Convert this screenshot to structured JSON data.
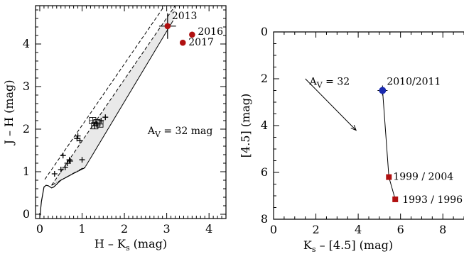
{
  "chart_data": [
    {
      "type": "scatter",
      "title": "",
      "xlabel": "H – K",
      "xlabel_sub": "s",
      "xlabel_unit": " (mag)",
      "ylabel": "J – H (mag)",
      "xlim": [
        -0.1,
        4.4
      ],
      "ylim": [
        -0.1,
        4.9
      ],
      "xticks": [
        0,
        1,
        2,
        3,
        4
      ],
      "yticks": [
        0,
        1,
        2,
        3,
        4
      ],
      "reddening_band": {
        "upper_dashed": [
          [
            0.12,
            0.82
          ],
          [
            2.95,
            4.9
          ]
        ],
        "middle_dashed": [
          [
            0.28,
            0.68
          ],
          [
            3.2,
            4.9
          ]
        ],
        "lower_solid": [
          [
            1.08,
            1.12
          ],
          [
            3.15,
            4.55
          ]
        ],
        "lower_dashdot": [
          [
            0.28,
            0.68
          ],
          [
            1.08,
            1.12
          ]
        ],
        "band_fill_color": "#e9e9e9"
      },
      "intrinsic_locus": [
        [
          0.0,
          -0.08
        ],
        [
          0.04,
          0.3
        ],
        [
          0.1,
          0.64
        ],
        [
          0.15,
          0.68
        ],
        [
          0.2,
          0.67
        ],
        [
          0.28,
          0.62
        ],
        [
          0.33,
          0.64
        ],
        [
          0.5,
          0.8
        ],
        [
          0.8,
          0.96
        ],
        [
          1.08,
          1.1
        ]
      ],
      "plus_points": [
        [
          0.35,
          0.95
        ],
        [
          0.5,
          1.05
        ],
        [
          0.6,
          1.1
        ],
        [
          0.55,
          1.38
        ],
        [
          0.65,
          1.2
        ],
        [
          0.7,
          1.28
        ],
        [
          0.72,
          1.25
        ],
        [
          0.88,
          1.78
        ],
        [
          0.9,
          1.84
        ],
        [
          0.95,
          1.73
        ],
        [
          1.0,
          1.28
        ],
        [
          1.3,
          2.08
        ],
        [
          1.35,
          2.12
        ],
        [
          1.45,
          2.2
        ],
        [
          1.55,
          2.28
        ]
      ],
      "square_points": [
        [
          1.25,
          2.2
        ],
        [
          1.3,
          2.08
        ],
        [
          1.35,
          2.15
        ],
        [
          1.42,
          2.12
        ]
      ],
      "epochs": [
        {
          "label": "2013",
          "x": 3.02,
          "y": 4.42,
          "xerr": 0.2,
          "yerr": 0.3,
          "color": "#b01010"
        },
        {
          "label": "2016",
          "x": 3.6,
          "y": 4.22,
          "color": "#b01010"
        },
        {
          "label": "2017",
          "x": 3.38,
          "y": 4.03,
          "color": "#b01010"
        }
      ],
      "annotation": {
        "text": "A",
        "sub": "V",
        "suffix": " = 32 mag",
        "x": 2.55,
        "y": 1.88
      }
    },
    {
      "type": "line",
      "title": "",
      "xlabel": "K",
      "xlabel_sub": "s",
      "xlabel_unit": " – [4.5] (mag)",
      "ylabel": "[4.5] (mag)",
      "xlim": [
        0,
        9
      ],
      "ylim": [
        8,
        0
      ],
      "y_inverted": true,
      "xticks": [
        0,
        2,
        4,
        6,
        8
      ],
      "yticks": [
        0,
        2,
        4,
        6,
        8
      ],
      "points": [
        {
          "label": "2010/2011",
          "x": 5.15,
          "y": 2.5,
          "color": "#1a2ab0",
          "marker": "circle"
        },
        {
          "label": "1999 / 2004",
          "x": 5.45,
          "y": 6.2,
          "color": "#b01010",
          "marker": "square"
        },
        {
          "label": "1993 / 1996",
          "x": 5.75,
          "y": 7.15,
          "color": "#b01010",
          "marker": "square"
        }
      ],
      "reddening_arrow": {
        "from": [
          1.5,
          2.0
        ],
        "to": [
          3.9,
          4.2
        ]
      },
      "annotation": {
        "text": "A",
        "sub": "V",
        "suffix": " = 32",
        "x": 1.7,
        "y": 2.25
      }
    }
  ]
}
